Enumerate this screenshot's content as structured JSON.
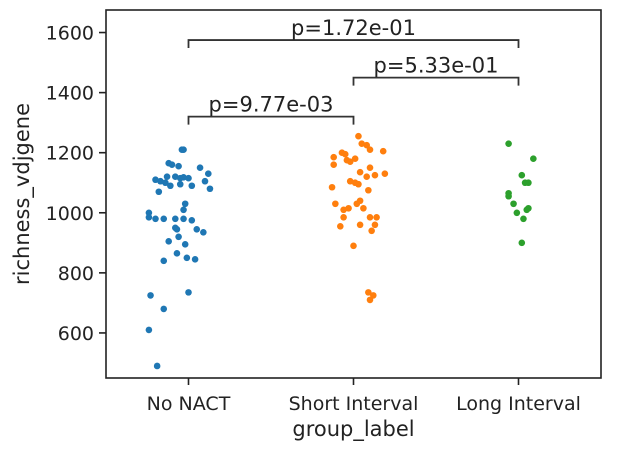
{
  "chart_data": {
    "type": "scatter",
    "subtype": "strip",
    "title": "",
    "xlabel": "group_label",
    "ylabel": "richness_vdjgene",
    "categories": [
      "No NACT",
      "Short Interval",
      "Long Interval"
    ],
    "yticks": [
      600,
      800,
      1000,
      1200,
      1400,
      1600
    ],
    "ylim": [
      450,
      1675
    ],
    "grid": false,
    "legend": "none",
    "series": [
      {
        "category": "No NACT",
        "color": "#1f77b4",
        "points": [
          {
            "x": -0.03,
            "y": 1210
          },
          {
            "x": -0.04,
            "y": 1210
          },
          {
            "x": -0.12,
            "y": 1165
          },
          {
            "x": -0.1,
            "y": 1160
          },
          {
            "x": -0.06,
            "y": 1155
          },
          {
            "x": 0.07,
            "y": 1150
          },
          {
            "x": 0.12,
            "y": 1130
          },
          {
            "x": -0.13,
            "y": 1120
          },
          {
            "x": -0.08,
            "y": 1120
          },
          {
            "x": -0.05,
            "y": 1115
          },
          {
            "x": 0.0,
            "y": 1115
          },
          {
            "x": -0.03,
            "y": 1118
          },
          {
            "x": -0.2,
            "y": 1110
          },
          {
            "x": -0.17,
            "y": 1105
          },
          {
            "x": -0.14,
            "y": 1100
          },
          {
            "x": 0.1,
            "y": 1105
          },
          {
            "x": -0.11,
            "y": 1090
          },
          {
            "x": -0.05,
            "y": 1095
          },
          {
            "x": 0.02,
            "y": 1090
          },
          {
            "x": 0.13,
            "y": 1080
          },
          {
            "x": -0.18,
            "y": 1070
          },
          {
            "x": -0.02,
            "y": 1030
          },
          {
            "x": -0.03,
            "y": 1010
          },
          {
            "x": -0.24,
            "y": 1000
          },
          {
            "x": -0.24,
            "y": 985
          },
          {
            "x": -0.2,
            "y": 980
          },
          {
            "x": -0.15,
            "y": 980
          },
          {
            "x": -0.08,
            "y": 980
          },
          {
            "x": -0.03,
            "y": 980
          },
          {
            "x": 0.02,
            "y": 975
          },
          {
            "x": -0.08,
            "y": 950
          },
          {
            "x": -0.07,
            "y": 945
          },
          {
            "x": 0.05,
            "y": 945
          },
          {
            "x": 0.09,
            "y": 935
          },
          {
            "x": -0.06,
            "y": 920
          },
          {
            "x": -0.12,
            "y": 905
          },
          {
            "x": -0.02,
            "y": 895
          },
          {
            "x": -0.07,
            "y": 865
          },
          {
            "x": 0.04,
            "y": 845
          },
          {
            "x": -0.15,
            "y": 840
          },
          {
            "x": -0.01,
            "y": 850
          },
          {
            "x": -0.23,
            "y": 725
          },
          {
            "x": 0.0,
            "y": 735
          },
          {
            "x": -0.15,
            "y": 680
          },
          {
            "x": -0.24,
            "y": 610
          },
          {
            "x": -0.19,
            "y": 490
          }
        ]
      },
      {
        "category": "Short Interval",
        "color": "#ff7f0e",
        "points": [
          {
            "x": 0.03,
            "y": 1255
          },
          {
            "x": 0.08,
            "y": 1225
          },
          {
            "x": 0.05,
            "y": 1230
          },
          {
            "x": -0.07,
            "y": 1200
          },
          {
            "x": 0.1,
            "y": 1210
          },
          {
            "x": 0.18,
            "y": 1205
          },
          {
            "x": -0.05,
            "y": 1195
          },
          {
            "x": -0.12,
            "y": 1185
          },
          {
            "x": 0.01,
            "y": 1180
          },
          {
            "x": -0.04,
            "y": 1175
          },
          {
            "x": -0.02,
            "y": 1170
          },
          {
            "x": -0.12,
            "y": 1160
          },
          {
            "x": 0.1,
            "y": 1150
          },
          {
            "x": 0.04,
            "y": 1135
          },
          {
            "x": 0.08,
            "y": 1120
          },
          {
            "x": 0.13,
            "y": 1125
          },
          {
            "x": 0.19,
            "y": 1130
          },
          {
            "x": -0.02,
            "y": 1105
          },
          {
            "x": 0.01,
            "y": 1100
          },
          {
            "x": 0.03,
            "y": 1095
          },
          {
            "x": -0.13,
            "y": 1085
          },
          {
            "x": 0.09,
            "y": 1075
          },
          {
            "x": 0.04,
            "y": 1040
          },
          {
            "x": -0.11,
            "y": 1030
          },
          {
            "x": 0.02,
            "y": 1030
          },
          {
            "x": -0.06,
            "y": 1010
          },
          {
            "x": -0.03,
            "y": 1015
          },
          {
            "x": 0.06,
            "y": 1015
          },
          {
            "x": -0.06,
            "y": 985
          },
          {
            "x": 0.1,
            "y": 985
          },
          {
            "x": 0.14,
            "y": 985
          },
          {
            "x": -0.08,
            "y": 955
          },
          {
            "x": 0.04,
            "y": 960
          },
          {
            "x": 0.13,
            "y": 960
          },
          {
            "x": 0.11,
            "y": 940
          },
          {
            "x": 0.0,
            "y": 890
          },
          {
            "x": 0.09,
            "y": 735
          },
          {
            "x": 0.12,
            "y": 725
          },
          {
            "x": 0.1,
            "y": 710
          }
        ]
      },
      {
        "category": "Long Interval",
        "color": "#2ca02c",
        "points": [
          {
            "x": -0.06,
            "y": 1230
          },
          {
            "x": 0.09,
            "y": 1180
          },
          {
            "x": 0.02,
            "y": 1125
          },
          {
            "x": 0.04,
            "y": 1100
          },
          {
            "x": 0.06,
            "y": 1100
          },
          {
            "x": -0.06,
            "y": 1065
          },
          {
            "x": -0.06,
            "y": 1055
          },
          {
            "x": -0.03,
            "y": 1030
          },
          {
            "x": 0.06,
            "y": 1015
          },
          {
            "x": 0.05,
            "y": 1010
          },
          {
            "x": -0.01,
            "y": 1000
          },
          {
            "x": 0.03,
            "y": 980
          },
          {
            "x": 0.02,
            "y": 900
          }
        ]
      }
    ],
    "annotations": [
      {
        "from": "No NACT",
        "to": "Short Interval",
        "y": 1320,
        "label": "p=9.77e-03"
      },
      {
        "from": "Short Interval",
        "to": "Long Interval",
        "y": 1450,
        "label": "p=5.33e-01"
      },
      {
        "from": "No NACT",
        "to": "Long Interval",
        "y": 1575,
        "label": "p=1.72e-01"
      }
    ]
  }
}
